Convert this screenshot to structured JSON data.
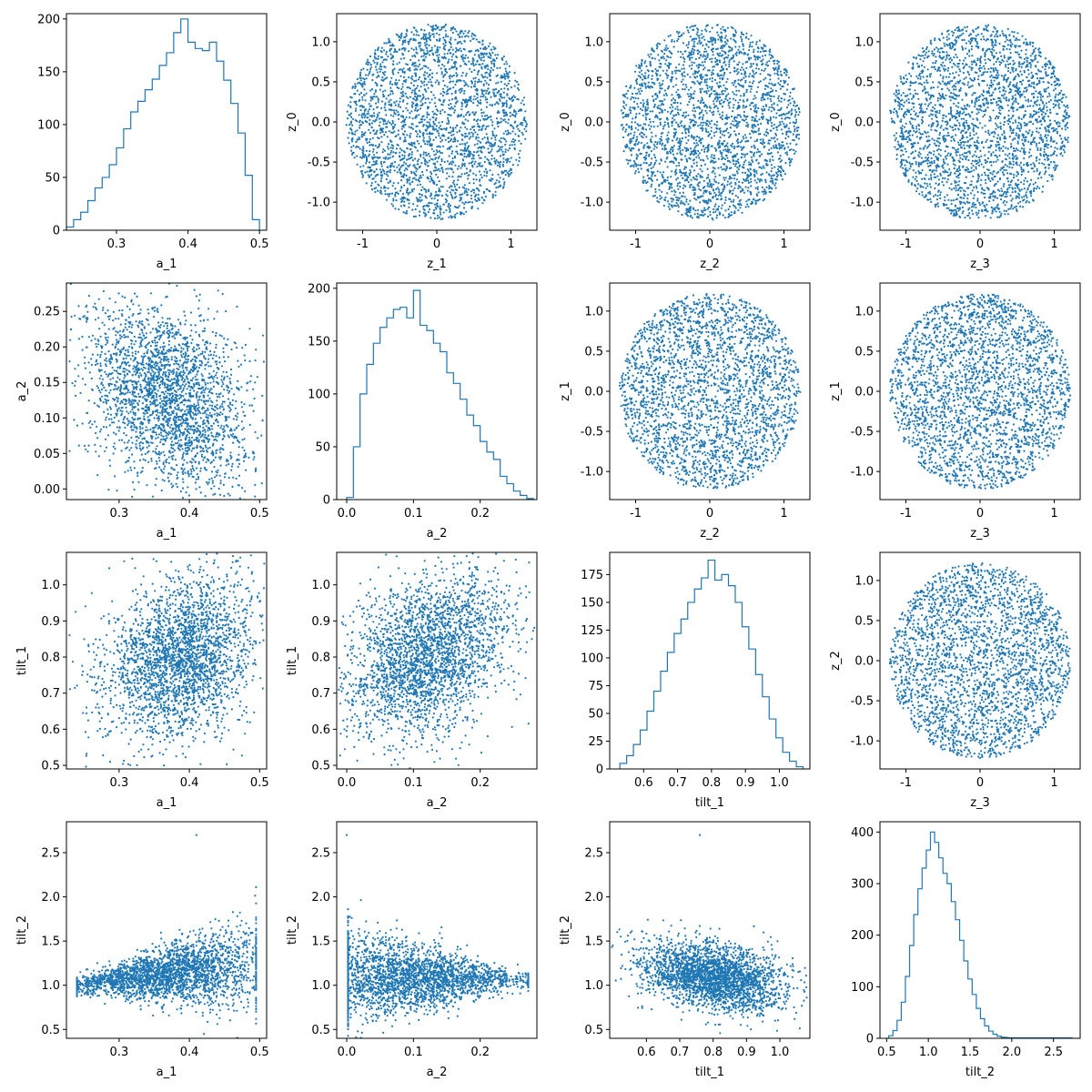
{
  "colors": {
    "series": "#1f77b4",
    "axis": "#000000",
    "background": "#ffffff"
  },
  "chart_data": [
    {
      "type": "histogram",
      "variable": "a_1",
      "xlabel": "a_1",
      "ylabel": "",
      "xlim": [
        0.23,
        0.51
      ],
      "ylim": [
        0,
        205
      ],
      "xticks": [
        0.3,
        0.4,
        0.5
      ],
      "yticks": [
        0,
        50,
        100,
        150,
        200
      ],
      "bins": [
        [
          0.235,
          3
        ],
        [
          0.245,
          10
        ],
        [
          0.255,
          17
        ],
        [
          0.265,
          28
        ],
        [
          0.275,
          40
        ],
        [
          0.285,
          50
        ],
        [
          0.295,
          62
        ],
        [
          0.305,
          78
        ],
        [
          0.315,
          96
        ],
        [
          0.325,
          112
        ],
        [
          0.335,
          122
        ],
        [
          0.345,
          133
        ],
        [
          0.355,
          143
        ],
        [
          0.365,
          156
        ],
        [
          0.375,
          168
        ],
        [
          0.385,
          187
        ],
        [
          0.395,
          200
        ],
        [
          0.405,
          178
        ],
        [
          0.415,
          172
        ],
        [
          0.425,
          170
        ],
        [
          0.435,
          178
        ],
        [
          0.445,
          160
        ],
        [
          0.455,
          142
        ],
        [
          0.465,
          120
        ],
        [
          0.475,
          92
        ],
        [
          0.485,
          52
        ],
        [
          0.495,
          10
        ]
      ]
    },
    {
      "type": "scatter",
      "x": "z_1",
      "y": "z_0",
      "xlabel": "z_1",
      "ylabel": "z_0",
      "xlim": [
        -1.35,
        1.35
      ],
      "ylim": [
        -1.35,
        1.35
      ],
      "xticks": [
        -1,
        0,
        1
      ],
      "yticks": [
        -1.0,
        -0.5,
        0.0,
        0.5,
        1.0
      ],
      "shape": "disc",
      "center": [
        0,
        0
      ],
      "radius": [
        1.22,
        1.22
      ]
    },
    {
      "type": "scatter",
      "x": "z_2",
      "y": "z_0",
      "xlabel": "z_2",
      "ylabel": "z_0",
      "xlim": [
        -1.35,
        1.35
      ],
      "ylim": [
        -1.35,
        1.35
      ],
      "xticks": [
        -1,
        0,
        1
      ],
      "yticks": [
        -1.0,
        -0.5,
        0.0,
        0.5,
        1.0
      ],
      "shape": "disc",
      "center": [
        0,
        0
      ],
      "radius": [
        1.22,
        1.22
      ]
    },
    {
      "type": "scatter",
      "x": "z_3",
      "y": "z_0",
      "xlabel": "z_3",
      "ylabel": "z_0",
      "xlim": [
        -1.35,
        1.35
      ],
      "ylim": [
        -1.35,
        1.35
      ],
      "xticks": [
        -1,
        0,
        1
      ],
      "yticks": [
        -1.0,
        -0.5,
        0.0,
        0.5,
        1.0
      ],
      "shape": "disc",
      "center": [
        0,
        0
      ],
      "radius": [
        1.22,
        1.22
      ]
    },
    {
      "type": "scatter",
      "x": "a_1",
      "y": "a_2",
      "xlabel": "a_1",
      "ylabel": "a_2",
      "xlim": [
        0.225,
        0.51
      ],
      "ylim": [
        -0.015,
        0.29
      ],
      "xticks": [
        0.3,
        0.4,
        0.5
      ],
      "yticks": [
        0.0,
        0.05,
        0.1,
        0.15,
        0.2,
        0.25
      ],
      "shape": "tilted-ellipse",
      "center": [
        0.37,
        0.13
      ],
      "slope": -0.9,
      "spread": [
        0.07,
        0.075
      ]
    },
    {
      "type": "histogram",
      "variable": "a_2",
      "xlabel": "a_2",
      "ylabel": "",
      "xlim": [
        -0.015,
        0.285
      ],
      "ylim": [
        0,
        205
      ],
      "xticks": [
        0.0,
        0.1,
        0.2
      ],
      "yticks": [
        0,
        50,
        100,
        150,
        200
      ],
      "bins": [
        [
          0.005,
          2
        ],
        [
          0.015,
          50
        ],
        [
          0.025,
          100
        ],
        [
          0.035,
          128
        ],
        [
          0.045,
          148
        ],
        [
          0.055,
          163
        ],
        [
          0.065,
          172
        ],
        [
          0.075,
          180
        ],
        [
          0.085,
          182
        ],
        [
          0.095,
          172
        ],
        [
          0.105,
          198
        ],
        [
          0.115,
          165
        ],
        [
          0.125,
          160
        ],
        [
          0.135,
          148
        ],
        [
          0.145,
          140
        ],
        [
          0.155,
          120
        ],
        [
          0.165,
          110
        ],
        [
          0.175,
          95
        ],
        [
          0.185,
          80
        ],
        [
          0.195,
          70
        ],
        [
          0.205,
          55
        ],
        [
          0.215,
          45
        ],
        [
          0.225,
          38
        ],
        [
          0.235,
          22
        ],
        [
          0.245,
          15
        ],
        [
          0.255,
          8
        ],
        [
          0.265,
          4
        ],
        [
          0.275,
          1
        ]
      ]
    },
    {
      "type": "scatter",
      "x": "z_2",
      "y": "z_1",
      "xlabel": "z_2",
      "ylabel": "z_1",
      "xlim": [
        -1.35,
        1.35
      ],
      "ylim": [
        -1.35,
        1.35
      ],
      "xticks": [
        -1,
        0,
        1
      ],
      "yticks": [
        -1.0,
        -0.5,
        0.0,
        0.5,
        1.0
      ],
      "shape": "disc",
      "center": [
        0,
        0
      ],
      "radius": [
        1.22,
        1.22
      ]
    },
    {
      "type": "scatter",
      "x": "z_3",
      "y": "z_1",
      "xlabel": "z_3",
      "ylabel": "z_1",
      "xlim": [
        -1.35,
        1.35
      ],
      "ylim": [
        -1.35,
        1.35
      ],
      "xticks": [
        -1,
        0,
        1
      ],
      "yticks": [
        -1.0,
        -0.5,
        0.0,
        0.5,
        1.0
      ],
      "shape": "disc",
      "center": [
        0,
        0
      ],
      "radius": [
        1.22,
        1.22
      ]
    },
    {
      "type": "scatter",
      "x": "a_1",
      "y": "tilt_1",
      "xlabel": "a_1",
      "ylabel": "tilt_1",
      "xlim": [
        0.225,
        0.51
      ],
      "ylim": [
        0.49,
        1.09
      ],
      "xticks": [
        0.3,
        0.4,
        0.5
      ],
      "yticks": [
        0.5,
        0.6,
        0.7,
        0.8,
        0.9,
        1.0
      ],
      "shape": "tilted-ellipse",
      "center": [
        0.39,
        0.8
      ],
      "slope": 0.8,
      "spread": [
        0.065,
        0.13
      ]
    },
    {
      "type": "scatter",
      "x": "a_2",
      "y": "tilt_1",
      "xlabel": "a_2",
      "ylabel": "tilt_1",
      "xlim": [
        -0.015,
        0.285
      ],
      "ylim": [
        0.49,
        1.09
      ],
      "xticks": [
        0.0,
        0.1,
        0.2
      ],
      "yticks": [
        0.5,
        0.6,
        0.7,
        0.8,
        0.9,
        1.0
      ],
      "shape": "tilted-ellipse",
      "center": [
        0.12,
        0.8
      ],
      "slope": 1.0,
      "spread": [
        0.075,
        0.13
      ]
    },
    {
      "type": "histogram",
      "variable": "tilt_1",
      "xlabel": "tilt_1",
      "ylabel": "",
      "xlim": [
        0.5,
        1.09
      ],
      "ylim": [
        0,
        195
      ],
      "xticks": [
        0.6,
        0.7,
        0.8,
        0.9,
        1.0
      ],
      "yticks": [
        0,
        25,
        50,
        75,
        100,
        125,
        150,
        175
      ],
      "bins": [
        [
          0.54,
          5
        ],
        [
          0.56,
          12
        ],
        [
          0.58,
          22
        ],
        [
          0.6,
          35
        ],
        [
          0.62,
          52
        ],
        [
          0.64,
          70
        ],
        [
          0.66,
          88
        ],
        [
          0.68,
          105
        ],
        [
          0.7,
          122
        ],
        [
          0.72,
          135
        ],
        [
          0.74,
          150
        ],
        [
          0.76,
          162
        ],
        [
          0.78,
          172
        ],
        [
          0.8,
          188
        ],
        [
          0.82,
          170
        ],
        [
          0.84,
          175
        ],
        [
          0.86,
          165
        ],
        [
          0.88,
          150
        ],
        [
          0.9,
          128
        ],
        [
          0.92,
          108
        ],
        [
          0.94,
          85
        ],
        [
          0.96,
          65
        ],
        [
          0.98,
          45
        ],
        [
          1.0,
          28
        ],
        [
          1.02,
          15
        ],
        [
          1.04,
          7
        ],
        [
          1.06,
          2
        ]
      ]
    },
    {
      "type": "scatter",
      "x": "z_3",
      "y": "z_2",
      "xlabel": "z_3",
      "ylabel": "z_2",
      "xlim": [
        -1.35,
        1.35
      ],
      "ylim": [
        -1.35,
        1.35
      ],
      "xticks": [
        -1,
        0,
        1
      ],
      "yticks": [
        -1.0,
        -0.5,
        0.0,
        0.5,
        1.0
      ],
      "shape": "disc",
      "center": [
        0,
        0
      ],
      "radius": [
        1.22,
        1.22
      ]
    },
    {
      "type": "scatter",
      "x": "a_1",
      "y": "tilt_2",
      "xlabel": "a_1",
      "ylabel": "tilt_2",
      "xlim": [
        0.225,
        0.51
      ],
      "ylim": [
        0.4,
        2.85
      ],
      "xticks": [
        0.3,
        0.4,
        0.5
      ],
      "yticks": [
        0.5,
        1.0,
        1.5,
        2.0,
        2.5
      ],
      "shape": "fan-right",
      "center": [
        0.37,
        1.1
      ],
      "spread": [
        0.065,
        0.3
      ]
    },
    {
      "type": "scatter",
      "x": "a_2",
      "y": "tilt_2",
      "xlabel": "a_2",
      "ylabel": "tilt_2",
      "xlim": [
        -0.015,
        0.285
      ],
      "ylim": [
        0.4,
        2.85
      ],
      "xticks": [
        0.0,
        0.1,
        0.2
      ],
      "yticks": [
        0.5,
        1.0,
        1.5,
        2.0,
        2.5
      ],
      "shape": "fan-left",
      "center": [
        0.11,
        1.1
      ],
      "spread": [
        0.075,
        0.3
      ]
    },
    {
      "type": "scatter",
      "x": "tilt_1",
      "y": "tilt_2",
      "xlabel": "tilt_1",
      "ylabel": "tilt_2",
      "xlim": [
        0.49,
        1.09
      ],
      "ylim": [
        0.4,
        2.85
      ],
      "xticks": [
        0.6,
        0.7,
        0.8,
        0.9,
        1.0
      ],
      "yticks": [
        0.5,
        1.0,
        1.5,
        2.0,
        2.5
      ],
      "shape": "tilted-ellipse",
      "center": [
        0.8,
        1.1
      ],
      "slope": -0.4,
      "spread": [
        0.13,
        0.22
      ]
    },
    {
      "type": "histogram",
      "variable": "tilt_2",
      "xlabel": "tilt_2",
      "ylabel": "",
      "xlim": [
        0.42,
        2.82
      ],
      "ylim": [
        0,
        420
      ],
      "xticks": [
        0.5,
        1.0,
        1.5,
        2.0,
        2.5
      ],
      "yticks": [
        0,
        100,
        200,
        300,
        400
      ],
      "bins": [
        [
          0.55,
          5
        ],
        [
          0.6,
          15
        ],
        [
          0.65,
          35
        ],
        [
          0.7,
          70
        ],
        [
          0.75,
          120
        ],
        [
          0.8,
          180
        ],
        [
          0.85,
          240
        ],
        [
          0.9,
          290
        ],
        [
          0.95,
          330
        ],
        [
          1.0,
          365
        ],
        [
          1.05,
          400
        ],
        [
          1.1,
          380
        ],
        [
          1.15,
          350
        ],
        [
          1.2,
          320
        ],
        [
          1.25,
          300
        ],
        [
          1.3,
          265
        ],
        [
          1.35,
          230
        ],
        [
          1.4,
          190
        ],
        [
          1.45,
          150
        ],
        [
          1.5,
          115
        ],
        [
          1.55,
          85
        ],
        [
          1.6,
          58
        ],
        [
          1.65,
          38
        ],
        [
          1.7,
          24
        ],
        [
          1.75,
          14
        ],
        [
          1.8,
          8
        ],
        [
          1.85,
          4
        ],
        [
          1.9,
          2
        ],
        [
          2.0,
          1
        ],
        [
          2.7,
          1
        ]
      ]
    }
  ]
}
